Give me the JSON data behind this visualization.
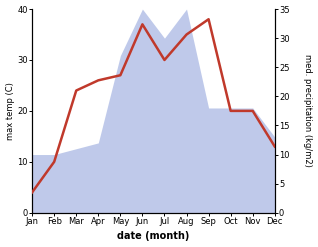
{
  "months": [
    "Jan",
    "Feb",
    "Mar",
    "Apr",
    "May",
    "Jun",
    "Jul",
    "Aug",
    "Sep",
    "Oct",
    "Nov",
    "Dec"
  ],
  "temperature": [
    4,
    10,
    24,
    26,
    27,
    37,
    30,
    35,
    38,
    20,
    20,
    13
  ],
  "precipitation": [
    10,
    10,
    11,
    12,
    27,
    35,
    30,
    35,
    18,
    18,
    18,
    13
  ],
  "temp_color": "#c0392b",
  "precip_color": "#b8c4e8",
  "title": "",
  "xlabel": "date (month)",
  "ylabel_left": "max temp (C)",
  "ylabel_right": "med. precipitation (kg/m2)",
  "temp_ylim": [
    0,
    40
  ],
  "precip_ylim": [
    0,
    35
  ],
  "temp_yticks": [
    0,
    10,
    20,
    30,
    40
  ],
  "precip_yticks": [
    0,
    5,
    10,
    15,
    20,
    25,
    30,
    35
  ],
  "background_color": "#ffffff",
  "fig_width": 3.18,
  "fig_height": 2.47,
  "dpi": 100
}
